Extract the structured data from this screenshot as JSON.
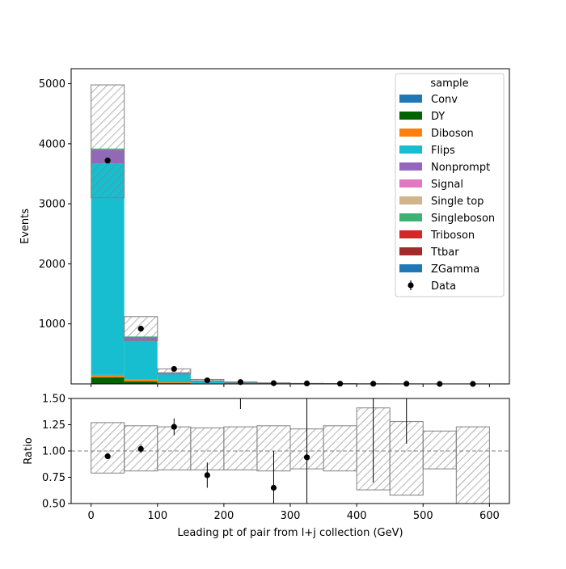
{
  "chart_data": [
    {
      "type": "bar",
      "stacked": true,
      "ylabel": "Events",
      "xlabel": "",
      "xlim": [
        -30,
        630
      ],
      "ylim": [
        0,
        5250
      ],
      "yticks": [
        1000,
        2000,
        3000,
        4000,
        5000
      ],
      "yticklabels": [
        "1000",
        "2000",
        "3000",
        "4000",
        "5000"
      ],
      "bin_edges": [
        0,
        50,
        100,
        150,
        200,
        250,
        300,
        350,
        400,
        450,
        500,
        550,
        600
      ],
      "series": [
        {
          "name": "Conv",
          "color": "#1f77b4",
          "values": [
            0,
            0,
            0,
            0,
            0,
            0,
            0,
            0,
            0,
            0,
            0,
            0
          ]
        },
        {
          "name": "DY",
          "color": "#006400",
          "values": [
            110,
            40,
            12,
            4,
            2,
            1,
            0,
            0,
            0,
            0,
            0,
            0
          ]
        },
        {
          "name": "Diboson",
          "color": "#ff7f0e",
          "values": [
            40,
            40,
            15,
            5,
            3,
            2,
            1,
            1,
            0,
            0,
            0,
            0
          ]
        },
        {
          "name": "Flips",
          "color": "#17becf",
          "values": [
            3520,
            640,
            150,
            45,
            18,
            8,
            4,
            2,
            1,
            1,
            0,
            0
          ]
        },
        {
          "name": "Nonprompt",
          "color": "#9467bd",
          "values": [
            230,
            60,
            15,
            5,
            3,
            2,
            1,
            1,
            0,
            0,
            0,
            0
          ]
        },
        {
          "name": "Signal",
          "color": "#e377c2",
          "values": [
            0,
            0,
            0,
            0,
            0,
            0,
            0,
            0,
            0,
            0,
            0,
            0
          ]
        },
        {
          "name": "Single top",
          "color": "#d2b48c",
          "values": [
            0,
            0,
            0,
            0,
            0,
            0,
            0,
            0,
            0,
            0,
            0,
            0
          ]
        },
        {
          "name": "Singleboson",
          "color": "#3cb371",
          "values": [
            20,
            10,
            4,
            2,
            1,
            1,
            0,
            0,
            0,
            0,
            0,
            0
          ]
        },
        {
          "name": "Triboson",
          "color": "#d62728",
          "values": [
            0,
            0,
            0,
            0,
            0,
            0,
            0,
            0,
            0,
            0,
            0,
            0
          ]
        },
        {
          "name": "Ttbar",
          "color": "#a52a2a",
          "values": [
            0,
            0,
            0,
            0,
            0,
            0,
            0,
            0,
            0,
            0,
            0,
            0
          ]
        },
        {
          "name": "ZGamma",
          "color": "#1f77b4",
          "values": [
            0,
            0,
            0,
            0,
            0,
            0,
            0,
            0,
            0,
            0,
            0,
            0
          ]
        }
      ],
      "uncertainty": {
        "low": [
          3100,
          720,
          165,
          50,
          22,
          12,
          6,
          4,
          1,
          1,
          0,
          0
        ],
        "high": [
          4980,
          1120,
          250,
          75,
          34,
          18,
          9,
          6,
          3,
          2,
          1,
          1
        ]
      },
      "data": {
        "name": "Data",
        "x": [
          25,
          75,
          125,
          175,
          225,
          275,
          325,
          375,
          425,
          475,
          525,
          575
        ],
        "y": [
          3720,
          920,
          250,
          60,
          30,
          12,
          8,
          4,
          3,
          3,
          0,
          0
        ]
      },
      "legend": {
        "title": "sample",
        "position": "top-right"
      }
    },
    {
      "type": "scatter",
      "xlabel": "Leading pt of pair from l+j collection (GeV)",
      "ylabel": "Ratio",
      "xlim": [
        -30,
        630
      ],
      "ylim": [
        0.5,
        1.5
      ],
      "xticks": [
        0,
        100,
        200,
        300,
        400,
        500,
        600
      ],
      "xticklabels": [
        "0",
        "100",
        "200",
        "300",
        "400",
        "500",
        "600"
      ],
      "yticks": [
        0.5,
        0.75,
        1.0,
        1.25,
        1.5
      ],
      "yticklabels": [
        "0.50",
        "0.75",
        "1.00",
        "1.25",
        "1.50"
      ],
      "reference_line": 1.0,
      "uncertainty_band": {
        "bin_edges": [
          0,
          50,
          100,
          150,
          200,
          250,
          300,
          350,
          400,
          450,
          500,
          550,
          600
        ],
        "low": [
          0.79,
          0.81,
          0.82,
          0.82,
          0.82,
          0.81,
          0.83,
          0.81,
          0.63,
          0.58,
          0.83,
          0.5
        ],
        "high": [
          1.27,
          1.24,
          1.23,
          1.22,
          1.23,
          1.24,
          1.21,
          1.24,
          1.41,
          1.28,
          1.19,
          1.23
        ]
      },
      "points": {
        "x": [
          25,
          75,
          125,
          175,
          275,
          325
        ],
        "y": [
          0.95,
          1.02,
          1.23,
          0.77,
          0.65,
          0.94
        ],
        "err": [
          0.02,
          0.04,
          0.08,
          0.12,
          0.35,
          0.62
        ]
      },
      "offscale_errorbars": [
        {
          "x": 225,
          "low": 1.4,
          "high": 1.5
        },
        {
          "x": 425,
          "low": 0.7,
          "high": 1.5
        },
        {
          "x": 475,
          "low": 1.07,
          "high": 1.5
        }
      ]
    }
  ]
}
